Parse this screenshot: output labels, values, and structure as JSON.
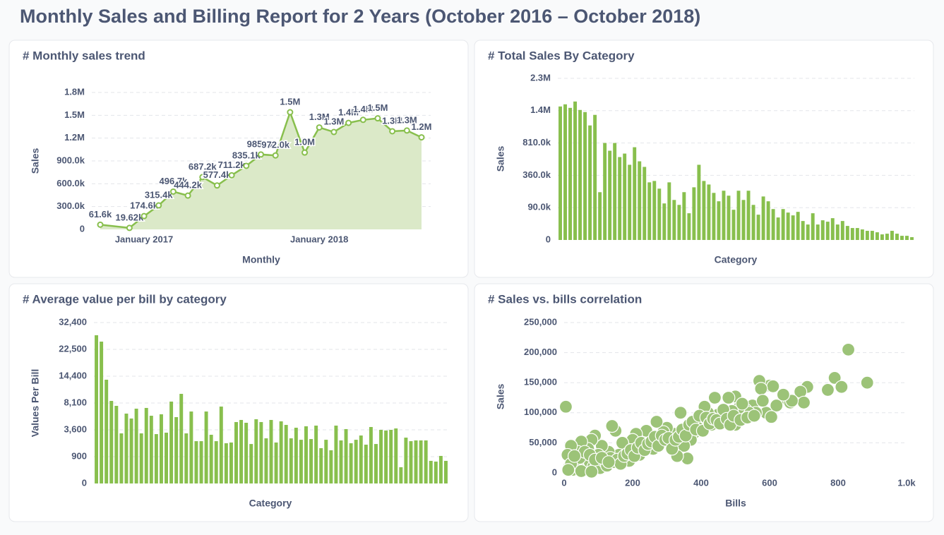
{
  "title": "Monthly Sales and Billing Report for 2 Years (October 2016 – October 2018)",
  "chart_data": [
    {
      "type": "line",
      "title": "# Monthly sales trend",
      "xlabel": "Monthly",
      "ylabel": "Sales",
      "color": "#88bf4d",
      "area_color": "#dbe9c8",
      "grid": true,
      "x": [
        "2016-10",
        "2016-12",
        "2017-01",
        "2017-02",
        "2017-03",
        "2017-04",
        "2017-05",
        "2017-06",
        "2017-07",
        "2017-08",
        "2017-09",
        "2017-10",
        "2017-11",
        "2017-12",
        "2018-01",
        "2018-02",
        "2018-03",
        "2018-04",
        "2018-05",
        "2018-06",
        "2018-07",
        "2018-08"
      ],
      "values": [
        61600,
        19620,
        174600,
        315400,
        496700,
        444200,
        687200,
        577400,
        711200,
        835100,
        985000,
        972000,
        1540000,
        1010000,
        1340000,
        1280000,
        1400000,
        1440000,
        1460000,
        1290000,
        1300000,
        1210000
      ],
      "value_labels": [
        "61.6k",
        "19.62k",
        "174.6k",
        "315.4k",
        "496.7k",
        "444.2k",
        "687.2k",
        "577.4k",
        "711.2k",
        "835.1k",
        "985.0k",
        "972.0k",
        "1.5M",
        "1.0M",
        "1.3M",
        "1.3M",
        "1.4M",
        "1.4M",
        "1.5M",
        "1.3M",
        "1.3M",
        "1.2M"
      ],
      "xlim": [
        "2016-10",
        "2018-08"
      ],
      "xticks": [
        {
          "value": "2017-01",
          "label": "January 2017"
        },
        {
          "value": "2018-01",
          "label": "January 2018"
        }
      ],
      "ylim": [
        0,
        1800000
      ],
      "yticks": [
        0,
        {
          "value": 300000,
          "label": "300.0k"
        },
        {
          "value": 600000,
          "label": "600.0k"
        },
        {
          "value": 900000,
          "label": "900.0k"
        },
        {
          "value": 1200000,
          "label": "1.2M"
        },
        {
          "value": 1500000,
          "label": "1.5M"
        },
        {
          "value": 1800000,
          "label": "1.8M"
        }
      ]
    },
    {
      "type": "bar",
      "title": "# Total Sales By Category",
      "xlabel": "Category",
      "ylabel": "Sales",
      "color": "#88bf4d",
      "grid": true,
      "scale": "sqrt",
      "categories": [
        null,
        null,
        null,
        null,
        null,
        null,
        null,
        null,
        null,
        null,
        null,
        null,
        null,
        null,
        null,
        null,
        null,
        null,
        null,
        null,
        null,
        null,
        null,
        null,
        null,
        null,
        null,
        null,
        null,
        null,
        null,
        null,
        null,
        null,
        null,
        null,
        null,
        null,
        null,
        null,
        null,
        null,
        null,
        null,
        null,
        null,
        null,
        null,
        null,
        null,
        null,
        null,
        null,
        null,
        null,
        null,
        null,
        null,
        null,
        null,
        null,
        null,
        null,
        null,
        null,
        null,
        null,
        null,
        null,
        null,
        null,
        null
      ],
      "values": [
        1535000,
        1585000,
        1503000,
        1651000,
        1456000,
        1409000,
        1130000,
        1348000,
        196700,
        810000,
        686000,
        810000,
        592000,
        643000,
        487000,
        741000,
        533000,
        460000,
        286000,
        300000,
        227000,
        115000,
        286000,
        138000,
        106000,
        197000,
        61500,
        239000,
        487000,
        300000,
        265000,
        191000,
        129000,
        209000,
        169000,
        78600,
        209000,
        138000,
        209000,
        106000,
        55100,
        163000,
        129000,
        82300,
        43600,
        82300,
        64700,
        52100,
        68100,
        31000,
        20600,
        61500,
        20600,
        33400,
        28800,
        40900,
        20600,
        31000,
        17000,
        12300,
        12300,
        9600,
        7200,
        7200,
        5100,
        2700,
        3400,
        7200,
        3400,
        1500,
        1500,
        680
      ],
      "ylim": [
        0,
        2250000
      ],
      "yticks": [
        0,
        {
          "value": 90000,
          "label": "90.0k"
        },
        {
          "value": 360000,
          "label": "360.0k"
        },
        {
          "value": 810000,
          "label": "810.0k"
        },
        {
          "value": 1440000,
          "label": "1.4M"
        },
        {
          "value": 2250000,
          "label": "2.3M"
        }
      ]
    },
    {
      "type": "bar",
      "title": "# Average value per bill by category",
      "xlabel": "Category",
      "ylabel": "Values Per Bill",
      "color": "#88bf4d",
      "grid": true,
      "scale": "sqrt",
      "categories": [
        null,
        null,
        null,
        null,
        null,
        null,
        null,
        null,
        null,
        null,
        null,
        null,
        null,
        null,
        null,
        null,
        null,
        null,
        null,
        null,
        null,
        null,
        null,
        null,
        null,
        null,
        null,
        null,
        null,
        null,
        null,
        null,
        null,
        null,
        null,
        null,
        null,
        null,
        null,
        null,
        null,
        null,
        null,
        null,
        null,
        null,
        null,
        null,
        null,
        null,
        null,
        null,
        null,
        null,
        null,
        null,
        null,
        null,
        null,
        null,
        null,
        null,
        null,
        null,
        null,
        null,
        null,
        null,
        null,
        null,
        null
      ],
      "values": [
        27490,
        25180,
        13470,
        8530,
        7540,
        3140,
        6110,
        5280,
        7000,
        3140,
        7140,
        5740,
        3050,
        5990,
        3230,
        8390,
        5510,
        10050,
        3140,
        6480,
        2240,
        2240,
        6480,
        2970,
        2240,
        7400,
        2025,
        2100,
        4720,
        5050,
        4610,
        1950,
        5160,
        4720,
        2550,
        5050,
        2100,
        4830,
        4290,
        2550,
        3890,
        2390,
        4090,
        2470,
        4190,
        1560,
        2390,
        1380,
        4190,
        2320,
        3700,
        2025,
        2390,
        2880,
        1885,
        3990,
        1950,
        3600,
        3510,
        3600,
        3790,
        330,
        2630,
        2240,
        2320,
        2320,
        2320,
        640,
        600,
        950,
        640
      ],
      "ylim": [
        0,
        32400
      ],
      "yticks": [
        0,
        900,
        {
          "value": 3600,
          "label": "3,600"
        },
        {
          "value": 8100,
          "label": "8,100"
        },
        {
          "value": 14400,
          "label": "14,400"
        },
        {
          "value": 22500,
          "label": "22,500"
        },
        {
          "value": 32400,
          "label": "32,400"
        }
      ]
    },
    {
      "type": "scatter",
      "title": "# Sales vs. bills correlation",
      "xlabel": "Bills",
      "ylabel": "Sales",
      "color": "#9cc378",
      "grid": true,
      "x": [
        830,
        885,
        790,
        810,
        770,
        710,
        690,
        700,
        650,
        660,
        665,
        640,
        620,
        600,
        610,
        570,
        575,
        590,
        605,
        550,
        560,
        580,
        530,
        540,
        500,
        510,
        520,
        480,
        490,
        460,
        470,
        500,
        440,
        450,
        420,
        410,
        400,
        430,
        380,
        390,
        370,
        360,
        340,
        350,
        360,
        330,
        320,
        300,
        310,
        290,
        280,
        270,
        260,
        250,
        240,
        230,
        220,
        210,
        200,
        190,
        180,
        170,
        160,
        150,
        140,
        130,
        120,
        110,
        100,
        90,
        80,
        70,
        60,
        50,
        40,
        30,
        20,
        10,
        5,
        15,
        25,
        35,
        45,
        55,
        65,
        75,
        85,
        95,
        105,
        115,
        125,
        135,
        145,
        155,
        165,
        175,
        185,
        195,
        205,
        215,
        225,
        235,
        245,
        255,
        265,
        275,
        285,
        295,
        305,
        315,
        325,
        335,
        345,
        355,
        365,
        375,
        385,
        395,
        405,
        415,
        425,
        435,
        445,
        455,
        465,
        475,
        485,
        495,
        515,
        535,
        555,
        45,
        60,
        75,
        20,
        30,
        12,
        90,
        110,
        130,
        50,
        80
      ],
      "values": [
        205000,
        150000,
        158000,
        143000,
        138000,
        143000,
        135000,
        117000,
        123000,
        117000,
        120000,
        130000,
        112000,
        145000,
        144000,
        153000,
        140000,
        100000,
        93000,
        112000,
        100000,
        120000,
        105000,
        100000,
        127000,
        108000,
        115000,
        125000,
        103000,
        93000,
        85000,
        80000,
        125000,
        97000,
        100000,
        110000,
        88000,
        80000,
        67000,
        75000,
        55000,
        70000,
        100000,
        45000,
        24000,
        28000,
        65000,
        75000,
        50000,
        68000,
        55000,
        85000,
        40000,
        58000,
        70000,
        45000,
        30000,
        65000,
        55000,
        20000,
        40000,
        50000,
        30000,
        70000,
        78000,
        35000,
        20000,
        45000,
        30000,
        62000,
        55000,
        40000,
        25000,
        52000,
        35000,
        20000,
        45000,
        30000,
        110000,
        10000,
        5000,
        12000,
        8000,
        15000,
        5000,
        18000,
        10000,
        14000,
        8000,
        20000,
        12000,
        25000,
        18000,
        22000,
        15000,
        28000,
        32000,
        38000,
        28000,
        42000,
        50000,
        38000,
        48000,
        52000,
        60000,
        45000,
        62000,
        55000,
        58000,
        40000,
        55000,
        60000,
        72000,
        62000,
        80000,
        85000,
        72000,
        95000,
        70000,
        92000,
        82000,
        90000,
        88000,
        82000,
        105000,
        90000,
        80000,
        95000,
        88000,
        92000,
        95000,
        25000,
        35000,
        30000,
        15000,
        28000,
        5000,
        22000,
        25000,
        18000,
        3000,
        2000
      ],
      "xlim": [
        0,
        1000
      ],
      "xticks": [
        0,
        200,
        400,
        600,
        800,
        {
          "value": 1000,
          "label": "1.0k"
        }
      ],
      "ylim": [
        0,
        250000
      ],
      "yticks": [
        0,
        {
          "value": 50000,
          "label": "50,000"
        },
        {
          "value": 100000,
          "label": "100,000"
        },
        {
          "value": 150000,
          "label": "150,000"
        },
        {
          "value": 200000,
          "label": "200,000"
        },
        {
          "value": 250000,
          "label": "250,000"
        }
      ]
    }
  ]
}
